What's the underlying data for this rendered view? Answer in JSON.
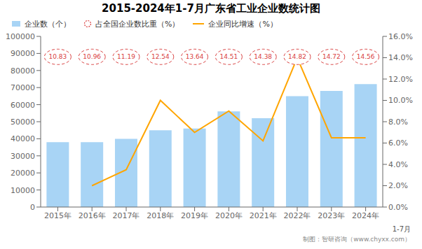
{
  "chart_data": {
    "type": "bar",
    "title": "2015-2024年1-7月广东省工业企业数统计图",
    "subtitle": "1-7月",
    "annotations": [
      "制图：智研咨询（www.chyxx.com）"
    ],
    "categories": [
      "2015年",
      "2016年",
      "2017年",
      "2018年",
      "2019年",
      "2020年",
      "2021年",
      "2022年",
      "2023年",
      "2024年"
    ],
    "series": [
      {
        "name": "企业数（个）",
        "type": "bar",
        "color": "#a8d4f5",
        "values": [
          38000,
          38000,
          40000,
          45000,
          46000,
          56000,
          52000,
          65000,
          68000,
          72000
        ]
      },
      {
        "name": "占全国企业数比重（%）",
        "type": "scatter",
        "marker": "circle",
        "line_style": "dashed",
        "data_labels": true,
        "color": "#d94040",
        "values": [
          10.83,
          10.96,
          11.19,
          12.54,
          13.64,
          14.51,
          14.38,
          14.82,
          14.72,
          14.56
        ]
      },
      {
        "name": "企业同比增速（%）",
        "type": "line",
        "axis": "y2",
        "color": "#FFA500",
        "values": [
          null,
          2.0,
          3.5,
          10.0,
          7.0,
          9.0,
          6.2,
          14.0,
          6.5,
          6.5
        ]
      }
    ],
    "ylim": [
      0,
      100000
    ],
    "yticks": [
      0,
      10000,
      20000,
      30000,
      40000,
      50000,
      60000,
      70000,
      80000,
      90000,
      100000
    ],
    "y2lim": [
      0,
      16.0
    ],
    "y2ticks": [
      {
        "value": 0,
        "label": "0.0%"
      },
      {
        "value": 2,
        "label": "2.0%"
      },
      {
        "value": 4,
        "label": "4.0%"
      },
      {
        "value": 6,
        "label": "6.0%"
      },
      {
        "value": 8,
        "label": "8.0%"
      },
      {
        "value": 10,
        "label": "10.0%"
      },
      {
        "value": 12,
        "label": "12.0%"
      },
      {
        "value": 14,
        "label": "14.0%"
      },
      {
        "value": 16,
        "label": "16.0%"
      }
    ],
    "grid": false,
    "legend": "upper left"
  }
}
